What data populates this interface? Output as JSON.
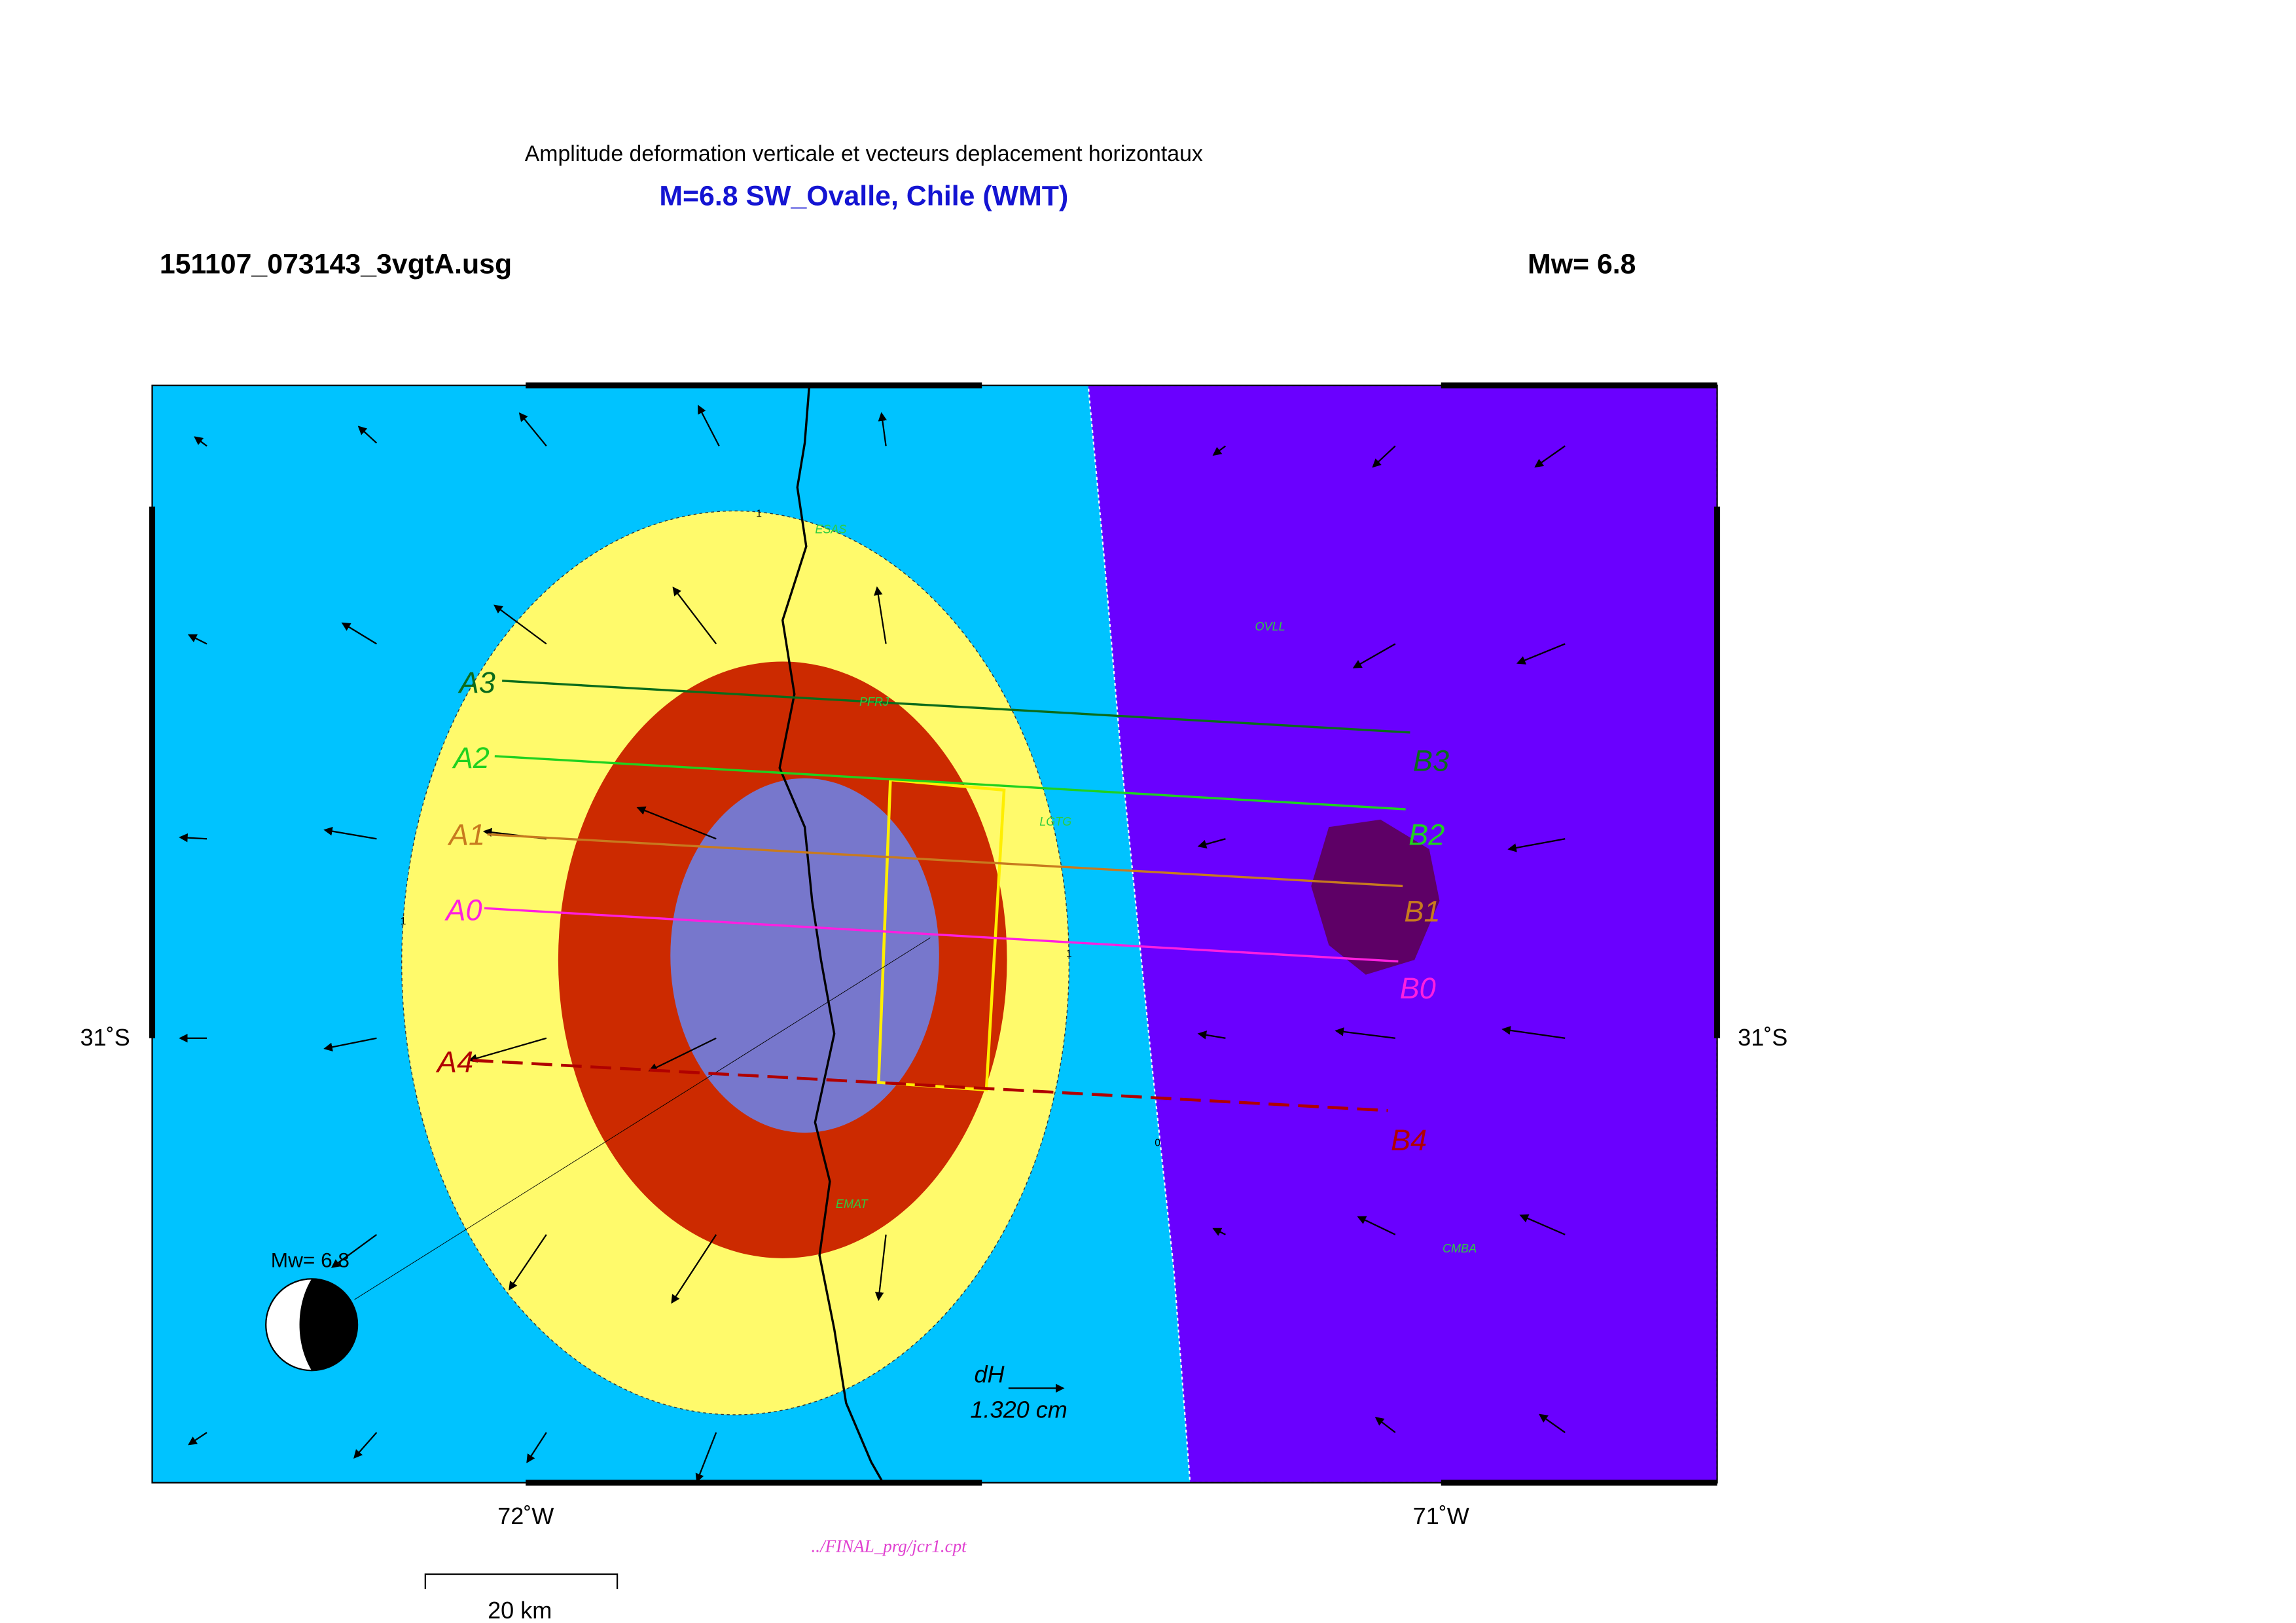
{
  "header": {
    "subtitle": "Amplitude deformation verticale et vecteurs deplacement horizontaux",
    "title": "M=6.8 SW_Ovalle, Chile (WMT)",
    "file": "151107_073143_3vgtA.usg",
    "magnitude": "Mw= 6.8"
  },
  "map": {
    "x_labels": [
      "72˚W",
      "71˚W"
    ],
    "y_labels": [
      "31˚S",
      "31˚S"
    ],
    "profiles": {
      "start": [
        "A3",
        "A2",
        "A1",
        "A0",
        "A4"
      ],
      "end": [
        "B3",
        "B2",
        "B1",
        "B0",
        "B4"
      ]
    },
    "stations": [
      "ESAS",
      "OVLL",
      "PFRJ",
      "LGTG",
      "EMAT",
      "CMBA"
    ],
    "contour_labels": [
      "1",
      "1",
      "1",
      "0"
    ],
    "mechanism_label": "Mw= 6.8",
    "vector_scale": {
      "label": "dH",
      "value": "1.320  cm"
    }
  },
  "footer": {
    "palette": "../FINAL_prg/jcr1.cpt",
    "scale_bar": "20 km"
  }
}
